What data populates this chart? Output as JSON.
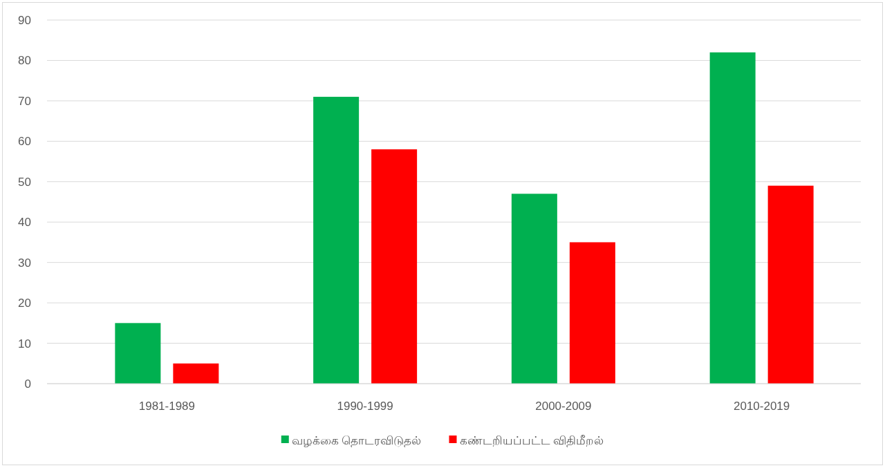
{
  "chart_data": {
    "type": "bar",
    "categories": [
      "1981-1989",
      "1990-1999",
      "2000-2009",
      "2010-2019"
    ],
    "series": [
      {
        "name": "வழக்கை தொடரவிடுதல்",
        "color": "#00b050",
        "values": [
          15,
          71,
          47,
          82
        ]
      },
      {
        "name": "கண்டறியப்பட்ட விதிமீறல்",
        "color": "#ff0000",
        "values": [
          5,
          58,
          35,
          49
        ]
      }
    ],
    "ylim": [
      0,
      90
    ],
    "yticks": [
      0,
      10,
      20,
      30,
      40,
      50,
      60,
      70,
      80,
      90
    ],
    "grid": "y",
    "legend": "bottom"
  }
}
